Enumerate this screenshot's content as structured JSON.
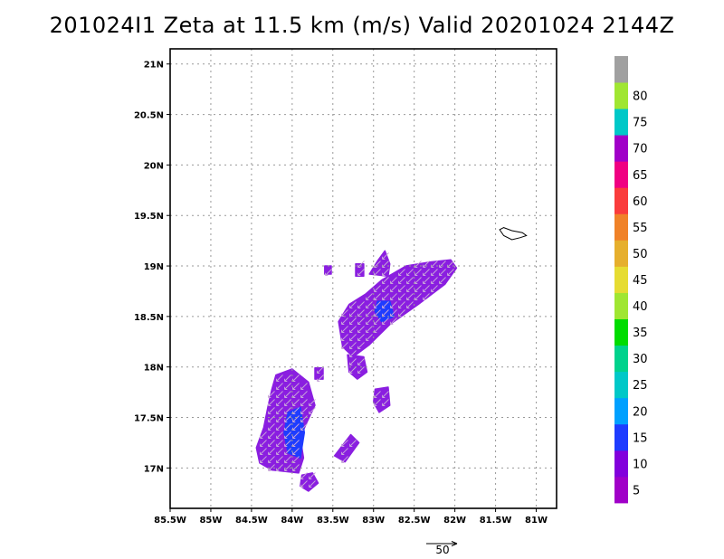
{
  "title": "201024I1 Zeta at 11.5 km (m/s) Valid 20201024 2144Z",
  "chart_data": {
    "type": "map-shaded-field",
    "title": "201024I1 Zeta at 11.5 km (m/s) Valid 20201024 2144Z",
    "xlim": [
      -85.5,
      -80.75
    ],
    "ylim": [
      16.6,
      21.15
    ],
    "grid": true,
    "x_ticks": [
      {
        "value": -85.5,
        "label": "85.5W"
      },
      {
        "value": -85.0,
        "label": "85W"
      },
      {
        "value": -84.5,
        "label": "84.5W"
      },
      {
        "value": -84.0,
        "label": "84W"
      },
      {
        "value": -83.5,
        "label": "83.5W"
      },
      {
        "value": -83.0,
        "label": "83W"
      },
      {
        "value": -82.5,
        "label": "82.5W"
      },
      {
        "value": -82.0,
        "label": "82W"
      },
      {
        "value": -81.5,
        "label": "81.5W"
      },
      {
        "value": -81.0,
        "label": "81W"
      }
    ],
    "y_ticks": [
      {
        "value": 17.0,
        "label": "17N"
      },
      {
        "value": 17.5,
        "label": "17.5N"
      },
      {
        "value": 18.0,
        "label": "18N"
      },
      {
        "value": 18.5,
        "label": "18.5N"
      },
      {
        "value": 19.0,
        "label": "19N"
      },
      {
        "value": 19.5,
        "label": "19.5N"
      },
      {
        "value": 20.0,
        "label": "20N"
      },
      {
        "value": 20.5,
        "label": "20.5N"
      },
      {
        "value": 21.0,
        "label": "21N"
      }
    ],
    "colorbar": {
      "boundaries": [
        0,
        5,
        10,
        15,
        20,
        25,
        30,
        35,
        40,
        45,
        50,
        55,
        60,
        65,
        70,
        75,
        80,
        85
      ],
      "colors": [
        "#a000c8",
        "#8200dc",
        "#1e3cff",
        "#00a0ff",
        "#00c8c8",
        "#00d28c",
        "#00dc00",
        "#a0e632",
        "#e6dc32",
        "#e6af2d",
        "#f08228",
        "#fa3c3c",
        "#f00082",
        "#a000c8",
        "#00c8c8",
        "#a0e632",
        "#a0a0a0"
      ],
      "labels": [
        "5",
        "10",
        "15",
        "20",
        "25",
        "30",
        "35",
        "40",
        "45",
        "50",
        "55",
        "60",
        "65",
        "70",
        "75",
        "80"
      ]
    },
    "shaded_regions": [
      {
        "id": "ne-band",
        "color": "#8a1ee0",
        "polygon": [
          [
            -82.9,
            18.86
          ],
          [
            -82.6,
            19.0
          ],
          [
            -82.3,
            19.04
          ],
          [
            -82.05,
            19.06
          ],
          [
            -81.98,
            18.98
          ],
          [
            -82.12,
            18.82
          ],
          [
            -82.45,
            18.62
          ],
          [
            -82.8,
            18.42
          ],
          [
            -83.05,
            18.22
          ],
          [
            -83.25,
            18.1
          ],
          [
            -83.38,
            18.2
          ],
          [
            -83.43,
            18.45
          ],
          [
            -83.3,
            18.62
          ],
          [
            -83.1,
            18.72
          ]
        ]
      },
      {
        "id": "ne-top-knob",
        "color": "#8a1ee0",
        "polygon": [
          [
            -83.05,
            18.92
          ],
          [
            -82.95,
            19.05
          ],
          [
            -82.86,
            19.15
          ],
          [
            -82.8,
            19.02
          ],
          [
            -82.82,
            18.9
          ]
        ]
      },
      {
        "id": "ne-south-lobe",
        "color": "#8a1ee0",
        "polygon": [
          [
            -83.32,
            18.12
          ],
          [
            -83.12,
            18.1
          ],
          [
            -83.08,
            17.95
          ],
          [
            -83.2,
            17.88
          ],
          [
            -83.3,
            17.95
          ]
        ]
      },
      {
        "id": "sw-blob",
        "color": "#8a1ee0",
        "polygon": [
          [
            -84.2,
            17.92
          ],
          [
            -84.0,
            17.98
          ],
          [
            -83.8,
            17.85
          ],
          [
            -83.72,
            17.62
          ],
          [
            -83.82,
            17.45
          ],
          [
            -83.9,
            17.3
          ],
          [
            -83.86,
            17.1
          ],
          [
            -83.92,
            16.95
          ],
          [
            -84.25,
            16.98
          ],
          [
            -84.4,
            17.05
          ],
          [
            -84.44,
            17.2
          ],
          [
            -84.35,
            17.4
          ],
          [
            -84.3,
            17.6
          ],
          [
            -84.25,
            17.78
          ]
        ]
      },
      {
        "id": "sw-south-tail",
        "color": "#8a1ee0",
        "polygon": [
          [
            -83.88,
            16.93
          ],
          [
            -83.75,
            16.95
          ],
          [
            -83.68,
            16.85
          ],
          [
            -83.8,
            16.77
          ],
          [
            -83.9,
            16.82
          ]
        ]
      },
      {
        "id": "mid-fragment",
        "color": "#8a1ee0",
        "polygon": [
          [
            -83.48,
            17.12
          ],
          [
            -83.28,
            17.33
          ],
          [
            -83.18,
            17.25
          ],
          [
            -83.35,
            17.06
          ]
        ]
      },
      {
        "id": "small-east",
        "color": "#8a1ee0",
        "polygon": [
          [
            -82.98,
            17.78
          ],
          [
            -82.82,
            17.8
          ],
          [
            -82.8,
            17.62
          ],
          [
            -82.93,
            17.55
          ],
          [
            -83.0,
            17.65
          ]
        ]
      },
      {
        "id": "small-west-1",
        "color": "#8a1ee0",
        "polygon": [
          [
            -83.72,
            17.99
          ],
          [
            -83.62,
            17.99
          ],
          [
            -83.62,
            17.88
          ],
          [
            -83.72,
            17.88
          ]
        ]
      },
      {
        "id": "small-nw-1",
        "color": "#8a1ee0",
        "polygon": [
          [
            -83.6,
            19.0
          ],
          [
            -83.52,
            19.0
          ],
          [
            -83.52,
            18.92
          ],
          [
            -83.6,
            18.92
          ]
        ]
      },
      {
        "id": "small-nw-2",
        "color": "#8a1ee0",
        "polygon": [
          [
            -83.22,
            19.02
          ],
          [
            -83.12,
            19.02
          ],
          [
            -83.12,
            18.9
          ],
          [
            -83.22,
            18.9
          ]
        ]
      },
      {
        "id": "blue-core-ne",
        "color": "#1e3cff",
        "polygon": [
          [
            -82.95,
            18.65
          ],
          [
            -82.8,
            18.65
          ],
          [
            -82.75,
            18.5
          ],
          [
            -82.9,
            18.45
          ],
          [
            -82.98,
            18.55
          ]
        ]
      },
      {
        "id": "blue-core-sw",
        "color": "#1e3cff",
        "polygon": [
          [
            -84.05,
            17.55
          ],
          [
            -83.9,
            17.6
          ],
          [
            -83.85,
            17.35
          ],
          [
            -83.9,
            17.1
          ],
          [
            -84.05,
            17.15
          ],
          [
            -84.1,
            17.35
          ]
        ]
      }
    ],
    "coastlines": [
      {
        "id": "grand-cayman",
        "polygon": [
          [
            -81.4,
            19.38
          ],
          [
            -81.3,
            19.35
          ],
          [
            -81.17,
            19.33
          ],
          [
            -81.12,
            19.3
          ],
          [
            -81.2,
            19.28
          ],
          [
            -81.3,
            19.26
          ],
          [
            -81.4,
            19.3
          ],
          [
            -81.45,
            19.36
          ]
        ]
      }
    ],
    "reference_vector": {
      "magnitude": "50"
    }
  }
}
